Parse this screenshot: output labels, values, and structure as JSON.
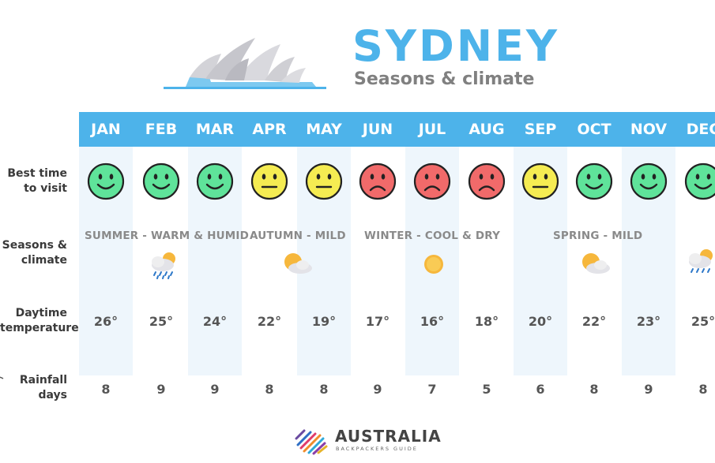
{
  "title": "SYDNEY",
  "subtitle": "Seasons & climate",
  "months": [
    "JAN",
    "FEB",
    "MAR",
    "APR",
    "MAY",
    "JUN",
    "JUL",
    "AUG",
    "SEP",
    "OCT",
    "NOV",
    "DEC"
  ],
  "row_labels": {
    "best_time": [
      "Best time",
      "to visit"
    ],
    "seasons": [
      "Seasons &",
      "climate"
    ],
    "temperature": [
      "Daytime",
      "temperature"
    ],
    "rainfall": [
      "Rainfall",
      "days"
    ]
  },
  "best_time_moods": [
    "happy",
    "happy",
    "happy",
    "neutral",
    "neutral",
    "sad",
    "sad",
    "sad",
    "neutral",
    "happy",
    "happy",
    "happy"
  ],
  "mood_colors": {
    "happy": "#5fe39a",
    "neutral": "#f5ec52",
    "sad": "#f16a6a"
  },
  "seasons": [
    {
      "label": "SUMMER - WARM & HUMID",
      "icon": "cloud-rain-sun-icon"
    },
    {
      "label": "AUTUMN - MILD",
      "icon": "sun-cloud-icon"
    },
    {
      "label": "WINTER - COOL & DRY",
      "icon": "sun-icon"
    },
    {
      "label": "SPRING - MILD",
      "icon": "sun-cloud-icon"
    },
    {
      "label": "",
      "icon": "cloud-rain-sun-icon"
    }
  ],
  "temperatures": [
    "26°",
    "25°",
    "24°",
    "22°",
    "19°",
    "17°",
    "16°",
    "18°",
    "20°",
    "22°",
    "23°",
    "25°"
  ],
  "rainfall_days": [
    "8",
    "9",
    "9",
    "8",
    "8",
    "9",
    "7",
    "5",
    "6",
    "8",
    "9",
    "8"
  ],
  "brand": {
    "name": "AUSTRALIA",
    "tagline": "BACKPACKERS GUIDE"
  },
  "colors": {
    "accent": "#4db3ea",
    "shade": "#eef6fc",
    "grey": "#8a8a8a"
  }
}
